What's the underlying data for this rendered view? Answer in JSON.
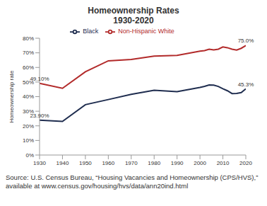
{
  "chart_data": {
    "type": "line",
    "title": "Homeownership Rates",
    "subtitle": "1930-2020",
    "y_label": "Homeownership rate",
    "x": [
      1930,
      1940,
      1950,
      1960,
      1970,
      1980,
      1990,
      2000,
      2002,
      2004,
      2006,
      2008,
      2010,
      2012,
      2014,
      2016,
      2018,
      2020
    ],
    "series": [
      {
        "name": "Black",
        "color": "#1f2d4f",
        "values": [
          23.9,
          23.0,
          34.5,
          38.0,
          41.6,
          44.4,
          43.4,
          46.3,
          47.0,
          48.0,
          47.9,
          47.0,
          45.4,
          44.0,
          42.1,
          42.2,
          42.8,
          45.3
        ]
      },
      {
        "name": "Non-Hispanic White",
        "color": "#b22a2a",
        "values": [
          49.1,
          45.7,
          57.0,
          64.5,
          65.5,
          67.8,
          68.2,
          71.1,
          71.5,
          72.5,
          72.0,
          72.5,
          74.0,
          73.5,
          72.5,
          71.9,
          73.1,
          75.0
        ]
      }
    ],
    "xlim": [
      1930,
      2020
    ],
    "xticks": [
      1930,
      1940,
      1950,
      1960,
      1970,
      1980,
      1990,
      2000,
      2010,
      2020
    ],
    "ylim": [
      0,
      80
    ],
    "yticks": [
      {
        "value": 0,
        "label": "0%"
      },
      {
        "value": 10,
        "label": "10%"
      },
      {
        "value": 20,
        "label": "20%"
      },
      {
        "value": 30,
        "label": "30%"
      },
      {
        "value": 40,
        "label": "40%"
      },
      {
        "value": 50,
        "label": "50%"
      },
      {
        "value": 60,
        "label": "60%"
      },
      {
        "value": 70,
        "label": "70%"
      },
      {
        "value": 80,
        "label": "80%"
      }
    ],
    "grid": false,
    "legend": "top",
    "annotations": [
      {
        "text": "49.10%",
        "x": 1930,
        "y": 49.1
      },
      {
        "text": "23.90%",
        "x": 1930,
        "y": 23.9
      },
      {
        "text": "75.0%",
        "x": 2020,
        "y": 75.0
      },
      {
        "text": "45.3%",
        "x": 2020,
        "y": 45.3
      }
    ],
    "source": "Source: U.S. Census Bureau, “Housing Vacancies and Homeownership (CPS/HVS),” available at www.census.gov/housing/hvs/data/ann20ind.html"
  }
}
